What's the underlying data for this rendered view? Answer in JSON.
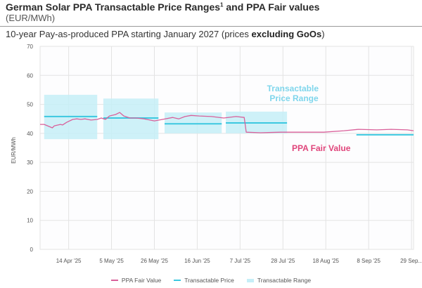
{
  "header": {
    "title": "German Solar PPA Transactable Price Ranges",
    "title_sup": "1",
    "title_rest": " and PPA Fair values",
    "unit": "(EUR/MWh)",
    "subtitle_prefix": "10-year Pay-as-produced PPA starting January 2027 (prices ",
    "subtitle_bold": "excluding GoOs",
    "subtitle_suffix": ")"
  },
  "colors": {
    "fair_value": "#d9609a",
    "fair_value_label": "#e0457b",
    "price": "#3cc8e0",
    "range": "#c6eef7",
    "range_label": "#7fd6ec",
    "grid": "#e3e3e3"
  },
  "chart_data": {
    "type": "line",
    "title": "German Solar PPA Transactable Price Ranges and PPA Fair values",
    "xlabel": "",
    "ylabel": "EUR/MWh",
    "ylim": [
      0,
      70
    ],
    "yticks": [
      0,
      10,
      20,
      30,
      40,
      50,
      60,
      70
    ],
    "xlim": [
      "2025-03-31",
      "2025-09-30"
    ],
    "xticks": [
      {
        "date": "2025-04-14",
        "label": "14 Apr '25"
      },
      {
        "date": "2025-05-05",
        "label": "5 May '25"
      },
      {
        "date": "2025-05-26",
        "label": "26 May '25"
      },
      {
        "date": "2025-06-16",
        "label": "16 Jun '25"
      },
      {
        "date": "2025-07-07",
        "label": "7 Jul '25"
      },
      {
        "date": "2025-07-28",
        "label": "28 Jul '25"
      },
      {
        "date": "2025-08-18",
        "label": "18 Aug '25"
      },
      {
        "date": "2025-09-08",
        "label": "8 Sep '25"
      },
      {
        "date": "2025-09-29",
        "label": "29 Sep..."
      }
    ],
    "grid": true,
    "legend_position": "bottom",
    "legend": [
      "PPA Fair Value",
      "Transactable Price",
      "Transactable Range"
    ],
    "annotations": [
      {
        "text": "Transactable\nPrice Range",
        "series": "Transactable Range"
      },
      {
        "text": "PPA Fair Value",
        "series": "PPA Fair Value"
      }
    ],
    "fair_value": [
      [
        "2025-03-31",
        43.1
      ],
      [
        "2025-04-02",
        43.1
      ],
      [
        "2025-04-06",
        41.9
      ],
      [
        "2025-04-07",
        42.6
      ],
      [
        "2025-04-10",
        43.1
      ],
      [
        "2025-04-11",
        42.9
      ],
      [
        "2025-04-13",
        43.8
      ],
      [
        "2025-04-16",
        44.8
      ],
      [
        "2025-04-18",
        45.0
      ],
      [
        "2025-04-20",
        44.8
      ],
      [
        "2025-04-22",
        45.0
      ],
      [
        "2025-04-25",
        44.6
      ],
      [
        "2025-04-28",
        44.8
      ],
      [
        "2025-04-30",
        45.3
      ],
      [
        "2025-05-02",
        44.8
      ],
      [
        "2025-05-04",
        46.0
      ],
      [
        "2025-05-07",
        46.5
      ],
      [
        "2025-05-09",
        47.2
      ],
      [
        "2025-05-11",
        46.0
      ],
      [
        "2025-05-14",
        45.3
      ],
      [
        "2025-05-17",
        45.3
      ],
      [
        "2025-05-21",
        45.0
      ],
      [
        "2025-05-26",
        44.3
      ],
      [
        "2025-05-30",
        44.8
      ],
      [
        "2025-06-04",
        45.5
      ],
      [
        "2025-06-07",
        45.0
      ],
      [
        "2025-06-10",
        45.8
      ],
      [
        "2025-06-13",
        46.2
      ],
      [
        "2025-06-17",
        46.0
      ],
      [
        "2025-06-23",
        45.8
      ],
      [
        "2025-06-29",
        45.3
      ],
      [
        "2025-07-05",
        45.8
      ],
      [
        "2025-07-09",
        45.5
      ],
      [
        "2025-07-10",
        40.4
      ],
      [
        "2025-07-17",
        40.2
      ],
      [
        "2025-07-27",
        40.4
      ],
      [
        "2025-08-06",
        40.4
      ],
      [
        "2025-08-17",
        40.4
      ],
      [
        "2025-08-27",
        40.9
      ],
      [
        "2025-09-03",
        41.4
      ],
      [
        "2025-09-12",
        41.2
      ],
      [
        "2025-09-19",
        41.4
      ],
      [
        "2025-09-27",
        41.2
      ],
      [
        "2025-09-30",
        40.9
      ]
    ],
    "transactable": [
      {
        "start": "2025-04-02",
        "end": "2025-04-28",
        "low": 38.0,
        "high": 53.3,
        "price": 45.8
      },
      {
        "start": "2025-05-01",
        "end": "2025-05-28",
        "low": 38.0,
        "high": 52.0,
        "price": 45.3
      },
      {
        "start": "2025-05-31",
        "end": "2025-06-28",
        "low": 40.0,
        "high": 47.2,
        "price": 43.3
      },
      {
        "start": "2025-06-30",
        "end": "2025-07-30",
        "low": 40.0,
        "high": 47.5,
        "price": 43.6
      },
      {
        "start": "2025-09-02",
        "end": "2025-09-30",
        "low": null,
        "high": null,
        "price": 39.5
      }
    ]
  }
}
